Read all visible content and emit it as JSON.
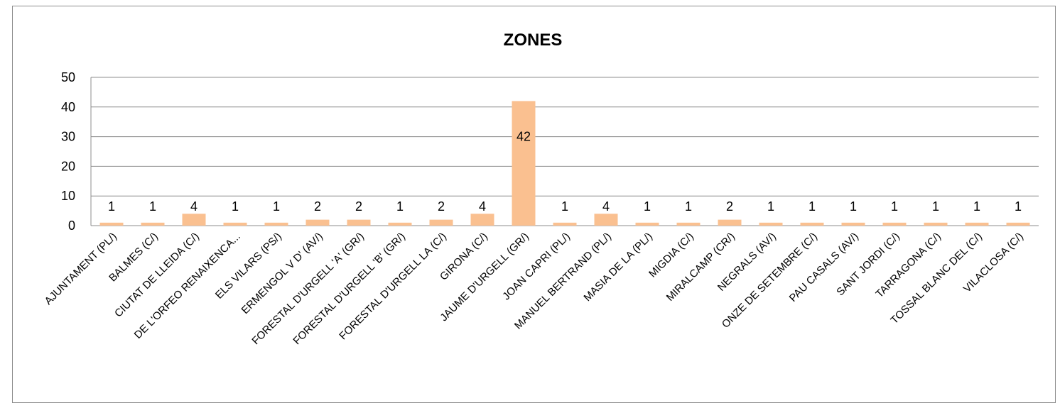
{
  "chart_data": {
    "type": "bar",
    "title": "ZONES",
    "xlabel": "",
    "ylabel": "",
    "ylim": [
      0,
      50
    ],
    "yticks": [
      "0",
      "10",
      "20",
      "30",
      "40",
      "50"
    ],
    "grid": true,
    "legend": "none",
    "bar_color": "#FAC090",
    "categories": [
      "AJUNTAMENT (PL/)",
      "BALMES (C/)",
      "CIUTAT DE LLEIDA (C/)",
      "DE L'ORFEO RENAIXENCA...",
      "ELS VILARS (PS/)",
      "ERMENGOL V D' (AV/)",
      "FORESTAL D'URGELL 'A' (GR/)",
      "FORESTAL D'URGELL 'B' (GR/)",
      "FORESTAL D'URGELL LA (C/)",
      "GIRONA (C/)",
      "JAUME D'URGELL (GR/)",
      "JOAN CAPRI (PL/)",
      "MANUEL BERTRAND (PL/)",
      "MASIA DE LA (PL/)",
      "MIGDIA (C/)",
      "MIRALCAMP (CR/)",
      "NEGRALS (AV/)",
      "ONZE DE SETEMBRE (C/)",
      "PAU CASALS (AV/)",
      "SANT JORDI (C/)",
      "TARRAGONA (C/)",
      "TOSSAL BLANC DEL (C/)",
      "VILACLOSA (C/)"
    ],
    "values": [
      1,
      1,
      4,
      1,
      1,
      2,
      2,
      1,
      2,
      4,
      42,
      1,
      4,
      1,
      1,
      2,
      1,
      1,
      1,
      1,
      1,
      1,
      1
    ],
    "data_labels": [
      "1",
      "1",
      "4",
      "1",
      "1",
      "2",
      "2",
      "1",
      "2",
      "4",
      "42",
      "1",
      "4",
      "1",
      "1",
      "2",
      "1",
      "1",
      "1",
      "1",
      "1",
      "1",
      "1"
    ]
  }
}
